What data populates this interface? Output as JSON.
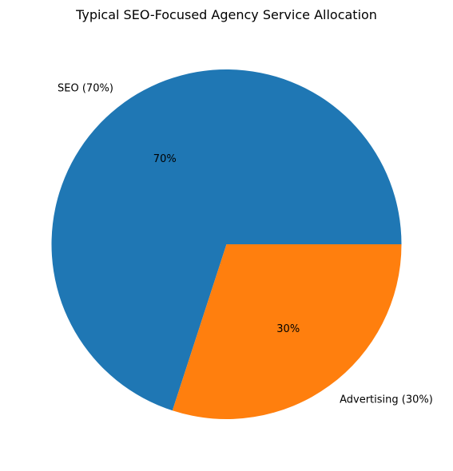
{
  "chart_data": {
    "type": "pie",
    "title": "Typical SEO-Focused Agency Service Allocation",
    "slices": [
      {
        "label": "SEO (70%)",
        "value": 70,
        "pct_label": "70%",
        "color": "#1f77b4"
      },
      {
        "label": "Advertising (30%)",
        "value": 30,
        "pct_label": "30%",
        "color": "#ff7f0e"
      }
    ],
    "start_angle_deg": 0,
    "direction": "counterclockwise",
    "legend": "none"
  }
}
